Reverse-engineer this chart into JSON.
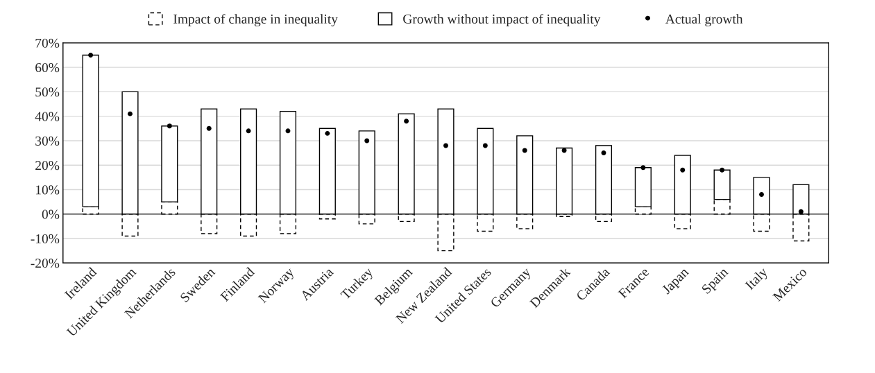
{
  "chart_data": {
    "type": "bar",
    "stacked": true,
    "categories": [
      "Ireland",
      "United Kingdom",
      "Netherlands",
      "Sweden",
      "Finland",
      "Norway",
      "Austria",
      "Turkey",
      "Belgium",
      "New Zealand",
      "United States",
      "Germany",
      "Denmark",
      "Canada",
      "France",
      "Japan",
      "Spain",
      "Italy",
      "Mexico"
    ],
    "series": [
      {
        "name": "Impact of change in inequality",
        "color": "#000000",
        "line_style": "dashed",
        "values": [
          3,
          -9,
          5,
          -8,
          -9,
          -8,
          -2,
          -4,
          -3,
          -15,
          -7,
          -6,
          -1,
          -3,
          3,
          -6,
          6,
          -7,
          -11
        ]
      },
      {
        "name": "Growth without impact of inequality",
        "color": "#000000",
        "line_style": "solid",
        "values": [
          62,
          50,
          31,
          43,
          43,
          42,
          35,
          34,
          41,
          43,
          35,
          32,
          27,
          28,
          16,
          24,
          12,
          15,
          12
        ]
      },
      {
        "name": "Actual growth",
        "type": "scatter",
        "color": "#000000",
        "marker": "circle",
        "values": [
          65,
          41,
          36,
          35,
          34,
          34,
          33,
          30,
          38,
          28,
          28,
          26,
          26,
          25,
          19,
          18,
          18,
          8,
          1
        ]
      }
    ],
    "ylim": [
      -20,
      70
    ],
    "yticks": [
      {
        "value": -20,
        "label": "-20%"
      },
      {
        "value": -10,
        "label": "-10%"
      },
      {
        "value": 0,
        "label": "0%"
      },
      {
        "value": 10,
        "label": "10%"
      },
      {
        "value": 20,
        "label": "20%"
      },
      {
        "value": 30,
        "label": "30%"
      },
      {
        "value": 40,
        "label": "40%"
      },
      {
        "value": 50,
        "label": "50%"
      },
      {
        "value": 60,
        "label": "60%"
      },
      {
        "value": 70,
        "label": "70%"
      }
    ],
    "ref_lines": [
      {
        "axis": "y",
        "value": 0,
        "color": "#404040"
      }
    ],
    "grid": "y",
    "legend": "top"
  }
}
